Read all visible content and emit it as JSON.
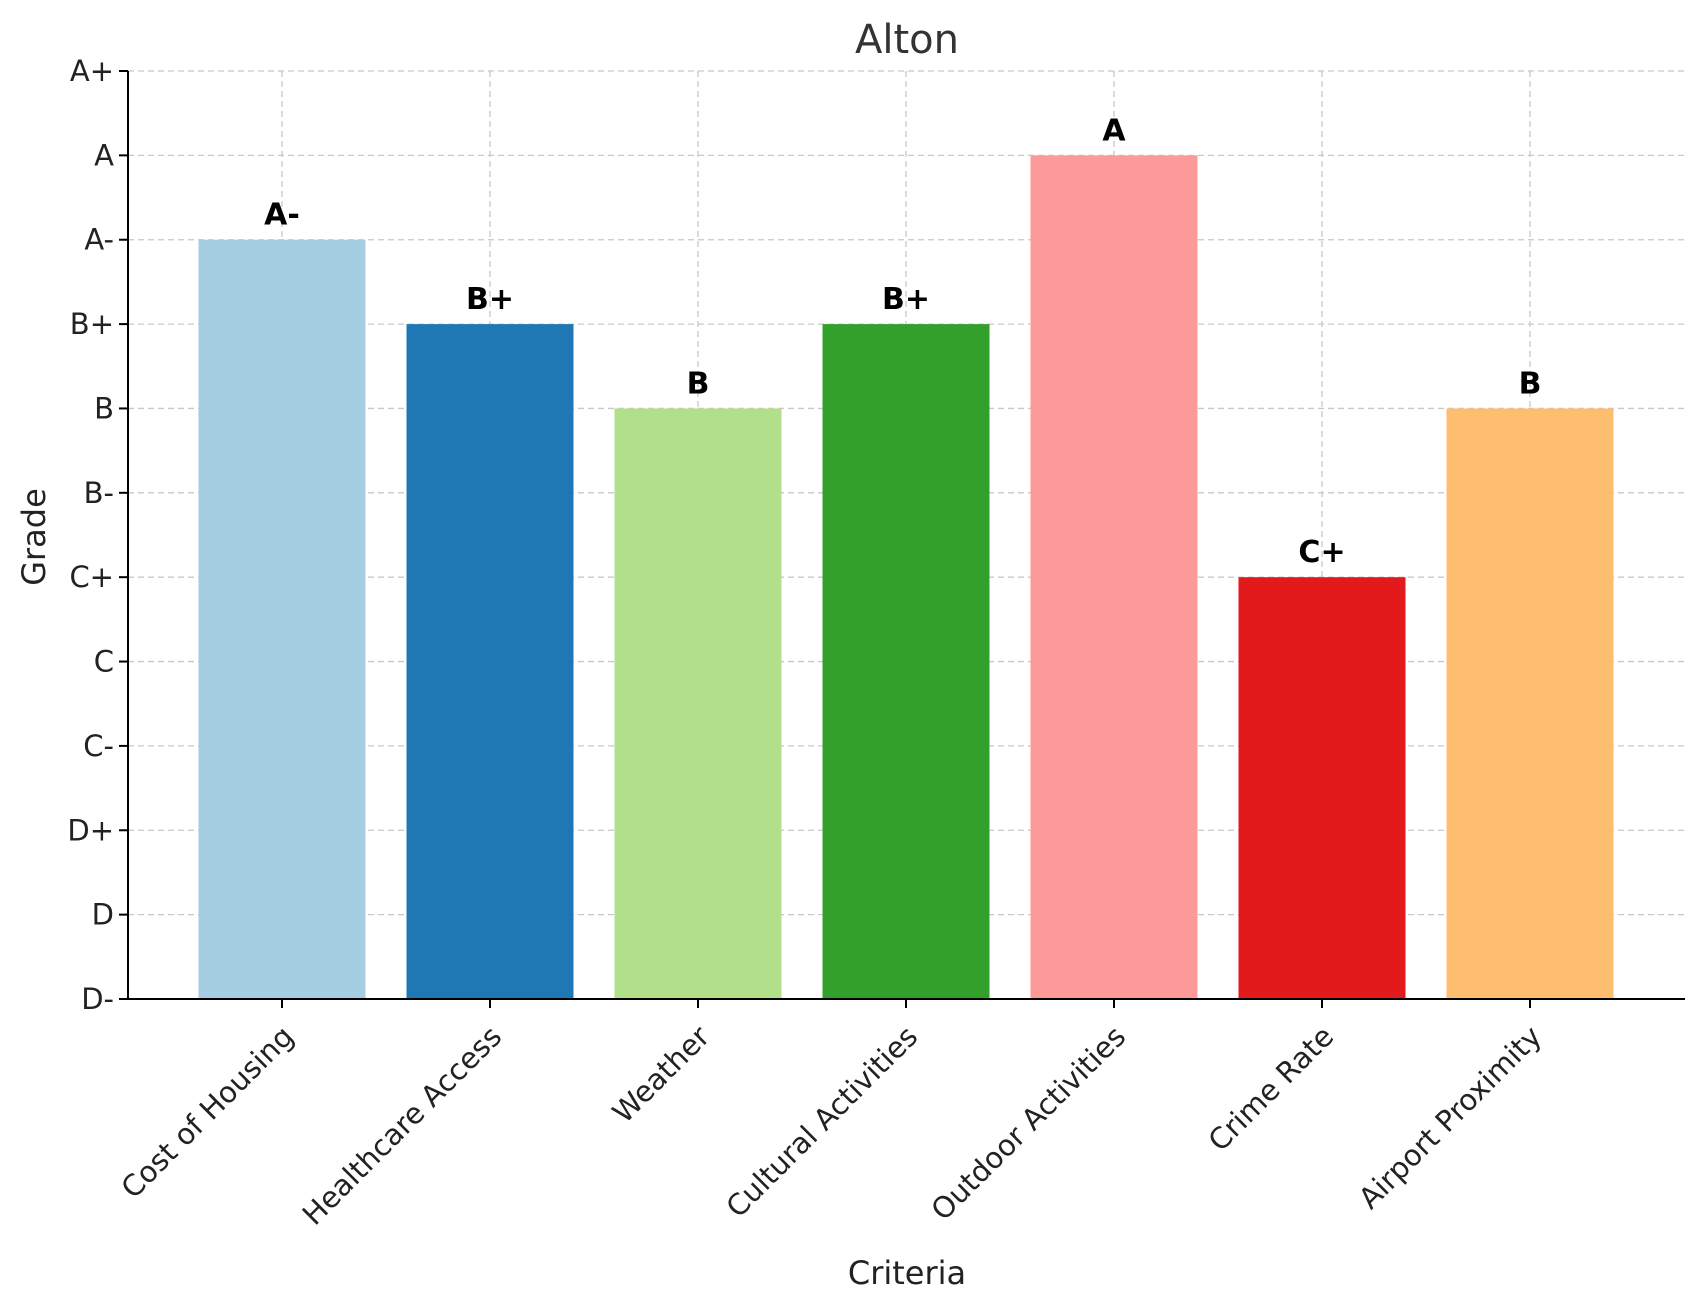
{
  "chart_data": {
    "type": "bar",
    "title": "Alton",
    "xlabel": "Criteria",
    "ylabel": "Grade",
    "y_ticks": [
      "D-",
      "D",
      "D+",
      "C-",
      "C",
      "C+",
      "B-",
      "B",
      "B+",
      "A-",
      "A",
      "A+"
    ],
    "ylim": [
      0,
      11
    ],
    "categories": [
      "Cost of Housing",
      "Healthcare Access",
      "Weather",
      "Cultural Activities",
      "Outdoor Activities",
      "Crime Rate",
      "Airport Proximity"
    ],
    "values": [
      9,
      8,
      7,
      8,
      10,
      5,
      7
    ],
    "labels": [
      "A-",
      "B+",
      "B",
      "B+",
      "A",
      "C+",
      "B"
    ],
    "colors": [
      "#a6cee3",
      "#1f78b4",
      "#b2df8a",
      "#33a02c",
      "#fb9a99",
      "#e31a1c",
      "#fdbf6f"
    ],
    "grid": true
  }
}
